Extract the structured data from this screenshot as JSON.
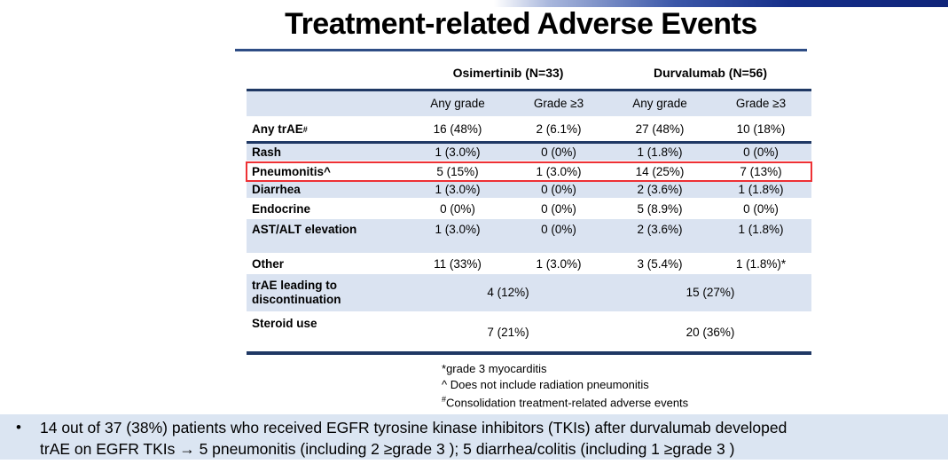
{
  "slide_title": "Treatment-related Adverse Events",
  "table": {
    "group_headers": [
      {
        "label": "Osimertinib (N=33)"
      },
      {
        "label": "Durvalumab (N=56)"
      }
    ],
    "sub_headers": [
      "Any grade",
      "Grade ≥3",
      "Any grade",
      "Grade ≥3"
    ],
    "rows": [
      {
        "label": "Any trAE",
        "label_sup": "#",
        "values": [
          "16 (48%)",
          "2 (6.1%)",
          "27 (48%)",
          "10 (18%)"
        ]
      },
      {
        "label": "Rash",
        "values": [
          "1 (3.0%)",
          "0 (0%)",
          "1 (1.8%)",
          "0 (0%)"
        ]
      },
      {
        "label": "Pneumonitis^",
        "values": [
          "5 (15%)",
          "1 (3.0%)",
          "14 (25%)",
          "7 (13%)"
        ],
        "highlighted": true
      },
      {
        "label": "Diarrhea",
        "values": [
          "1 (3.0%)",
          "0 (0%)",
          "2 (3.6%)",
          "1 (1.8%)"
        ]
      },
      {
        "label": "Endocrine",
        "values": [
          "0 (0%)",
          "0 (0%)",
          "5 (8.9%)",
          "0 (0%)"
        ]
      },
      {
        "label": "AST/ALT elevation",
        "values": [
          "1 (3.0%)",
          "0 (0%)",
          "2 (3.6%)",
          "1 (1.8%)"
        ]
      },
      {
        "label": "Other",
        "values": [
          "11 (33%)",
          "1 (3.0%)",
          "3 (5.4%)",
          "1 (1.8%)*"
        ]
      },
      {
        "label": "trAE leading to discontinuation",
        "merged_values": [
          "4 (12%)",
          "15 (27%)"
        ]
      },
      {
        "label": "Steroid use",
        "merged_values": [
          "7 (21%)",
          "20 (36%)"
        ]
      }
    ]
  },
  "footnotes": [
    {
      "marker": "*",
      "text": "grade 3 myocarditis"
    },
    {
      "marker": "^ ",
      "text": "Does not include radiation pneumonitis"
    },
    {
      "marker": "#",
      "text": "Consolidation treatment-related adverse events"
    }
  ],
  "callout": {
    "bullet": "•",
    "line1": "14 out of 37 (38%) patients who received EGFR tyrosine kinase inhibitors (TKIs) after durvalumab developed",
    "line2": "trAE on EGFR TKIs → 5 pneumonitis (including 2 ≥grade 3 ); 5 diarrhea/colitis (including 1 ≥grade 3 )"
  },
  "colors": {
    "navy": "#1f3864",
    "stripe_blue": "#dae3f1",
    "callout_bg": "#dbe5f2",
    "highlight_red": "#ee3135",
    "topbar_dark": "#0f2479"
  }
}
